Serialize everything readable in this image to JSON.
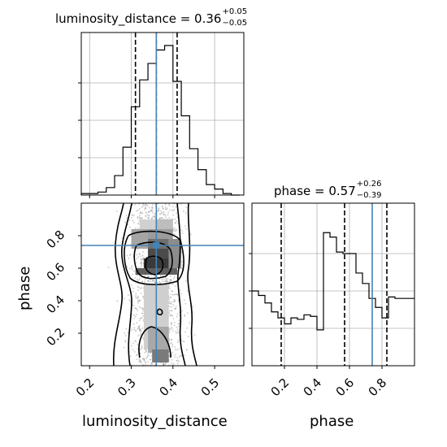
{
  "chart_data": {
    "type": "corner",
    "parameters": [
      "luminosity_distance",
      "phase"
    ],
    "truths": {
      "luminosity_distance": 0.36,
      "phase": 0.74
    },
    "quantiles": {
      "luminosity_distance": [
        0.31,
        0.36,
        0.41
      ],
      "phase": [
        0.18,
        0.57,
        0.83
      ]
    },
    "titles": {
      "luminosity_distance": {
        "prefix": "luminosity_distance = 0.36",
        "plus": "+0.05",
        "minus": "−0.05"
      },
      "phase": {
        "prefix": "phase = 0.57",
        "plus": "+0.26",
        "minus": "−0.39"
      }
    },
    "xlabels": {
      "luminosity_distance": "luminosity_distance",
      "phase": "phase"
    },
    "ylabels": {
      "phase": "phase"
    },
    "ranges": {
      "luminosity_distance": [
        0.18,
        0.57
      ],
      "phase": [
        0.0,
        1.0
      ]
    },
    "ticks": {
      "luminosity_distance": [
        "0.2",
        "0.3",
        "0.4",
        "0.5"
      ],
      "phase": [
        "0.2",
        "0.4",
        "0.6",
        "0.8"
      ]
    },
    "hist_luminosity_distance": {
      "edges": [
        0.18,
        0.2,
        0.22,
        0.24,
        0.26,
        0.28,
        0.3,
        0.32,
        0.34,
        0.36,
        0.38,
        0.4,
        0.42,
        0.44,
        0.46,
        0.48,
        0.5,
        0.52,
        0.54,
        0.56
      ],
      "counts": [
        0.01,
        0.01,
        0.02,
        0.05,
        0.13,
        0.32,
        0.59,
        0.77,
        0.88,
        0.97,
        1.0,
        0.76,
        0.53,
        0.31,
        0.17,
        0.07,
        0.04,
        0.01,
        0.0
      ]
    },
    "hist_phase": {
      "edges": [
        0.0,
        0.04,
        0.08,
        0.12,
        0.16,
        0.2,
        0.24,
        0.28,
        0.32,
        0.36,
        0.4,
        0.44,
        0.48,
        0.52,
        0.56,
        0.6,
        0.64,
        0.68,
        0.72,
        0.76,
        0.8,
        0.84,
        0.88,
        0.92,
        1.0
      ],
      "counts": [
        0.5,
        0.47,
        0.42,
        0.36,
        0.32,
        0.28,
        0.32,
        0.31,
        0.34,
        0.33,
        0.24,
        0.89,
        0.86,
        0.76,
        0.75,
        0.75,
        0.62,
        0.55,
        0.45,
        0.39,
        0.32,
        0.46,
        0.45,
        0.45
      ]
    },
    "contour_levels": [
      0.5,
      1.0,
      1.5,
      2.0
    ],
    "grid": true
  }
}
